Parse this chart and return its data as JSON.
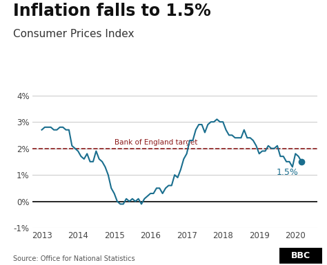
{
  "title": "Inflation falls to 1.5%",
  "subtitle": "Consumer Prices Index",
  "source": "Source: Office for National Statistics",
  "bbc_label": "BBC",
  "target_label": "Bank of England target",
  "target_value": 2.0,
  "last_value": 1.5,
  "last_label": "1.5%",
  "ylim": [
    -1,
    4
  ],
  "yticks": [
    -1,
    0,
    1,
    2,
    3,
    4
  ],
  "ytick_labels": [
    "-1%",
    "0%",
    "1%",
    "2%",
    "3%",
    "4%"
  ],
  "line_color": "#1a6e8e",
  "target_color": "#8b1a1a",
  "zero_line_color": "#000000",
  "grid_color": "#cccccc",
  "background_color": "#ffffff",
  "title_fontsize": 17,
  "subtitle_fontsize": 11,
  "cpi_data": [
    [
      2013.0,
      2.7
    ],
    [
      2013.083,
      2.8
    ],
    [
      2013.167,
      2.8
    ],
    [
      2013.25,
      2.8
    ],
    [
      2013.333,
      2.7
    ],
    [
      2013.417,
      2.7
    ],
    [
      2013.5,
      2.8
    ],
    [
      2013.583,
      2.8
    ],
    [
      2013.667,
      2.7
    ],
    [
      2013.75,
      2.7
    ],
    [
      2013.833,
      2.1
    ],
    [
      2013.917,
      2.0
    ],
    [
      2014.0,
      1.9
    ],
    [
      2014.083,
      1.7
    ],
    [
      2014.167,
      1.6
    ],
    [
      2014.25,
      1.8
    ],
    [
      2014.333,
      1.5
    ],
    [
      2014.417,
      1.5
    ],
    [
      2014.5,
      1.9
    ],
    [
      2014.583,
      1.6
    ],
    [
      2014.667,
      1.5
    ],
    [
      2014.75,
      1.3
    ],
    [
      2014.833,
      1.0
    ],
    [
      2014.917,
      0.5
    ],
    [
      2015.0,
      0.3
    ],
    [
      2015.083,
      0.0
    ],
    [
      2015.167,
      -0.1
    ],
    [
      2015.25,
      -0.1
    ],
    [
      2015.333,
      0.1
    ],
    [
      2015.417,
      0.0
    ],
    [
      2015.5,
      0.1
    ],
    [
      2015.583,
      0.0
    ],
    [
      2015.667,
      0.1
    ],
    [
      2015.75,
      -0.1
    ],
    [
      2015.833,
      0.1
    ],
    [
      2015.917,
      0.2
    ],
    [
      2016.0,
      0.3
    ],
    [
      2016.083,
      0.3
    ],
    [
      2016.167,
      0.5
    ],
    [
      2016.25,
      0.5
    ],
    [
      2016.333,
      0.3
    ],
    [
      2016.417,
      0.5
    ],
    [
      2016.5,
      0.6
    ],
    [
      2016.583,
      0.6
    ],
    [
      2016.667,
      1.0
    ],
    [
      2016.75,
      0.9
    ],
    [
      2016.833,
      1.2
    ],
    [
      2016.917,
      1.6
    ],
    [
      2017.0,
      1.8
    ],
    [
      2017.083,
      2.3
    ],
    [
      2017.167,
      2.3
    ],
    [
      2017.25,
      2.7
    ],
    [
      2017.333,
      2.9
    ],
    [
      2017.417,
      2.9
    ],
    [
      2017.5,
      2.6
    ],
    [
      2017.583,
      2.9
    ],
    [
      2017.667,
      3.0
    ],
    [
      2017.75,
      3.0
    ],
    [
      2017.833,
      3.1
    ],
    [
      2017.917,
      3.0
    ],
    [
      2018.0,
      3.0
    ],
    [
      2018.083,
      2.7
    ],
    [
      2018.167,
      2.5
    ],
    [
      2018.25,
      2.5
    ],
    [
      2018.333,
      2.4
    ],
    [
      2018.417,
      2.4
    ],
    [
      2018.5,
      2.4
    ],
    [
      2018.583,
      2.7
    ],
    [
      2018.667,
      2.4
    ],
    [
      2018.75,
      2.4
    ],
    [
      2018.833,
      2.3
    ],
    [
      2018.917,
      2.1
    ],
    [
      2019.0,
      1.8
    ],
    [
      2019.083,
      1.9
    ],
    [
      2019.167,
      1.9
    ],
    [
      2019.25,
      2.1
    ],
    [
      2019.333,
      2.0
    ],
    [
      2019.417,
      2.0
    ],
    [
      2019.5,
      2.1
    ],
    [
      2019.583,
      1.7
    ],
    [
      2019.667,
      1.7
    ],
    [
      2019.75,
      1.5
    ],
    [
      2019.833,
      1.5
    ],
    [
      2019.917,
      1.3
    ],
    [
      2020.0,
      1.8
    ],
    [
      2020.083,
      1.7
    ],
    [
      2020.167,
      1.5
    ]
  ]
}
